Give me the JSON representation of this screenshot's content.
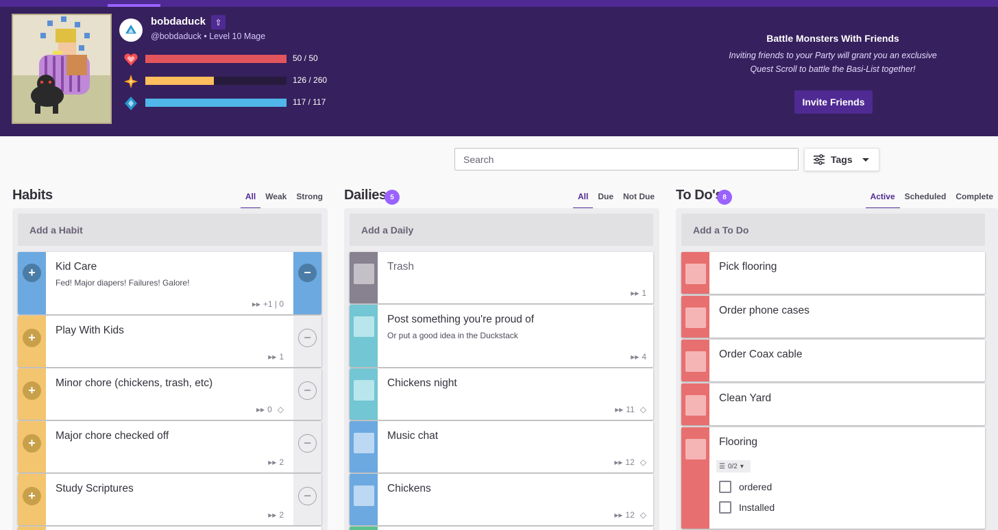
{
  "user": {
    "name": "bobdaduck",
    "handle": "@bobdaduck",
    "level_text": "Level 10 Mage",
    "stats": [
      {
        "name": "health",
        "icon": "heart-icon",
        "text": "50 / 50",
        "fraction": 1.0,
        "color": "#e3555c",
        "icon_color": "#f74e52"
      },
      {
        "name": "experience",
        "icon": "star-icon",
        "text": "126 / 260",
        "fraction": 0.485,
        "color": "#ffbe5d",
        "icon_color": "#ffa623"
      },
      {
        "name": "mana",
        "icon": "mana-icon",
        "text": "117 / 117",
        "fraction": 1.0,
        "color": "#50b5e9",
        "icon_color": "#2995cd"
      }
    ]
  },
  "promo": {
    "title": "Battle Monsters With Friends",
    "line1": "Inviting friends to your Party will grant you an exclusive",
    "line2": "Quest Scroll to battle the Basi-List together!",
    "button": "Invite Friends"
  },
  "toolbar": {
    "search_placeholder": "Search",
    "tags_label": "Tags"
  },
  "habits": {
    "title": "Habits",
    "filters": [
      "All",
      "Weak",
      "Strong"
    ],
    "add_label": "Add a Habit",
    "items": [
      {
        "title": "Kid Care",
        "notes": "Fed! Major diapers! Failures! Galore!",
        "meta": "+1 | 0"
      },
      {
        "title": "Play With Kids",
        "notes": "",
        "meta": "1"
      },
      {
        "title": "Minor chore (chickens, trash, etc)",
        "notes": "",
        "meta": "0"
      },
      {
        "title": "Major chore checked off",
        "notes": "",
        "meta": "2"
      },
      {
        "title": "Study Scriptures",
        "notes": "",
        "meta": "2"
      }
    ]
  },
  "dailies": {
    "title": "Dailies",
    "count": "5",
    "filters": [
      "All",
      "Due",
      "Not Due"
    ],
    "add_label": "Add a Daily",
    "items": [
      {
        "title": "Trash",
        "notes": "",
        "meta": "1"
      },
      {
        "title": "Post something you're proud of",
        "notes": "Or put a good idea in the Duckstack",
        "meta": "4"
      },
      {
        "title": "Chickens night",
        "notes": "",
        "meta": "11"
      },
      {
        "title": "Music chat",
        "notes": "",
        "meta": "12"
      },
      {
        "title": "Chickens",
        "notes": "",
        "meta": "12"
      }
    ]
  },
  "todos": {
    "title": "To Do's",
    "count": "8",
    "filters": [
      "Active",
      "Scheduled",
      "Complete"
    ],
    "add_label": "Add a To Do",
    "items": [
      {
        "title": "Pick flooring"
      },
      {
        "title": "Order phone cases"
      },
      {
        "title": "Order Coax cable"
      },
      {
        "title": "Clean Yard"
      },
      {
        "title": "Flooring",
        "checklist_count": "0/2",
        "checklist": [
          "ordered",
          "Installed"
        ]
      }
    ]
  },
  "colors": {
    "header_bg": "#36205d",
    "accent": "#4f2a93",
    "badge": "#9a62ff",
    "habit_blue": "#6ba9e0",
    "habit_yellow": "#f3c56f",
    "daily_gray": "#878190",
    "daily_teal": "#73c6d3",
    "daily_blue": "#6ba9e0",
    "todo_red": "#e86f6f"
  }
}
